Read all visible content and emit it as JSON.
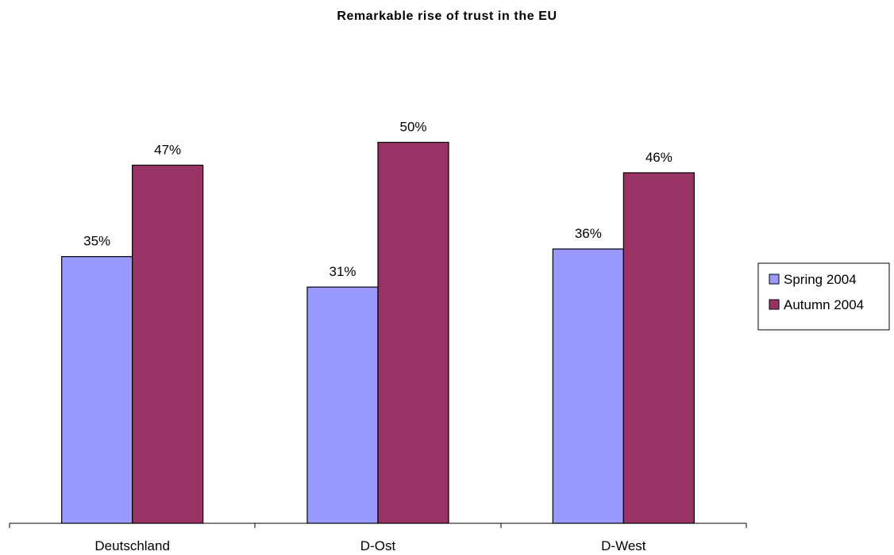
{
  "chart_data": {
    "type": "bar",
    "title": "Remarkable rise of trust in the EU",
    "categories": [
      "Deutschland",
      "D-Ost",
      "D-West"
    ],
    "series": [
      {
        "name": "Spring 2004",
        "values": [
          35,
          31,
          36
        ],
        "labels": [
          "35%",
          "31%",
          "36%"
        ],
        "color": "#9999ff"
      },
      {
        "name": "Autumn 2004",
        "values": [
          47,
          50,
          46
        ],
        "labels": [
          "47%",
          "50%",
          "46%"
        ],
        "color": "#993366"
      }
    ],
    "ylim": [
      0,
      65
    ],
    "grid": false,
    "legend": "right"
  }
}
